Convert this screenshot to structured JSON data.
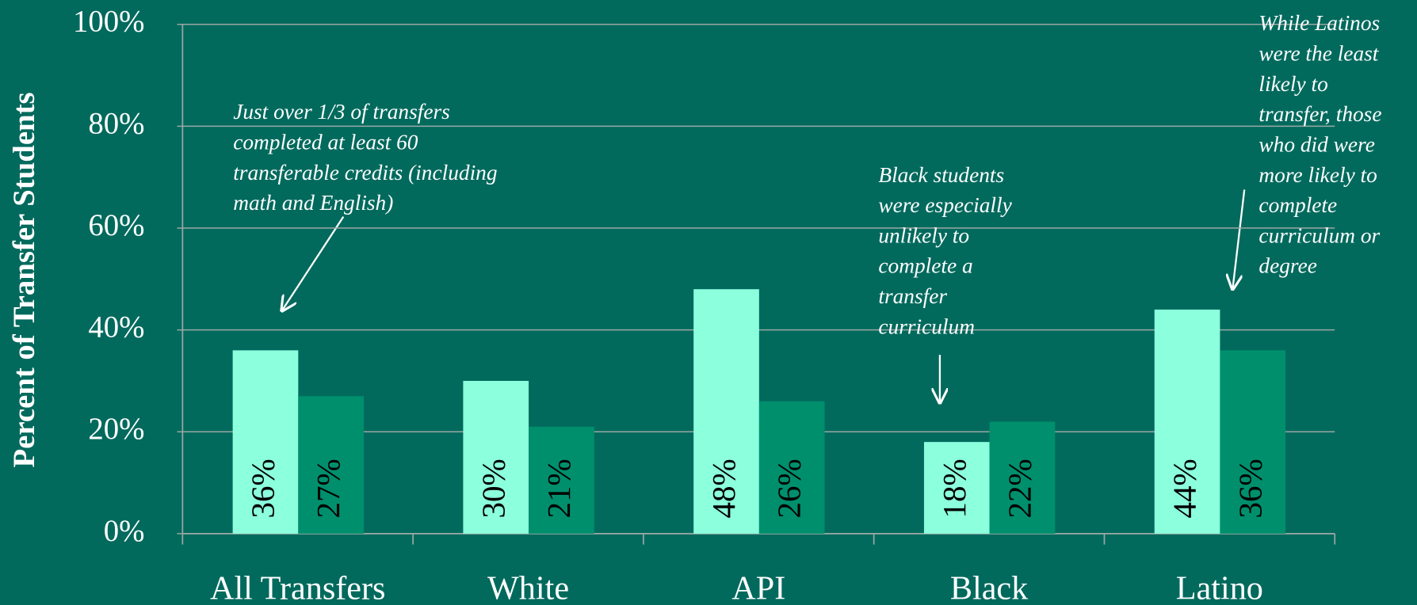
{
  "chart_data": {
    "type": "bar",
    "y_axis_label": "Percent of Transfer Students",
    "categories": [
      "All Transfers",
      "White",
      "API",
      "Black",
      "Latino"
    ],
    "series": [
      {
        "color": "#8cffdd",
        "values": [
          36,
          30,
          48,
          18,
          44
        ],
        "value_labels": [
          "36%",
          "30%",
          "48%",
          "18%",
          "44%"
        ]
      },
      {
        "color": "#008f6d",
        "values": [
          27,
          21,
          26,
          22,
          36
        ],
        "value_labels": [
          "27%",
          "21%",
          "26%",
          "22%",
          "36%"
        ]
      }
    ],
    "ylim": [
      0,
      100
    ],
    "yticks": [
      {
        "value": 0,
        "label": "0%"
      },
      {
        "value": 20,
        "label": "20%"
      },
      {
        "value": 40,
        "label": "40%"
      },
      {
        "value": 60,
        "label": "60%"
      },
      {
        "value": 80,
        "label": "80%"
      },
      {
        "value": 100,
        "label": "100%"
      }
    ],
    "grid": true,
    "annotations": [
      {
        "lines": [
          "Just over 1/3  of transfers",
          "completed at least 60",
          "transferable credits (including",
          "math and English)"
        ]
      },
      {
        "lines": [
          "Black students",
          "were especially",
          "unlikely to",
          "complete a",
          "transfer",
          "curriculum"
        ]
      },
      {
        "lines": [
          "While Latinos",
          "were the least",
          "likely to",
          "transfer, those",
          "who did were",
          "more likely to",
          "complete",
          "curriculum or",
          "degree"
        ]
      }
    ]
  }
}
